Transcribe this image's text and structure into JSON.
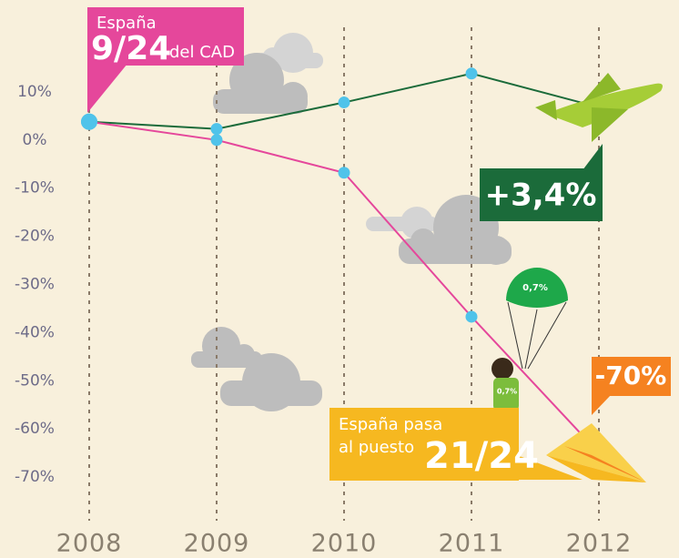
{
  "chart_data": {
    "type": "line",
    "x": [
      "2008",
      "2009",
      "2010",
      "2011",
      "2012"
    ],
    "series": [
      {
        "color": "#1b6b3a",
        "values": [
          3.8,
          2.3,
          7.8,
          13.8,
          6.8
        ]
      },
      {
        "color": "#e5479b",
        "values": [
          3.8,
          0,
          -6.8,
          -36.7,
          -65
        ]
      }
    ],
    "marker_color": "#4fc3ea",
    "ylim": [
      -80,
      20
    ],
    "yticks": [
      {
        "value": 10,
        "label": "10%"
      },
      {
        "value": 0,
        "label": "0%"
      },
      {
        "value": -10,
        "label": "-10%"
      },
      {
        "value": -20,
        "label": "-20%"
      },
      {
        "value": -30,
        "label": "-30%"
      },
      {
        "value": -40,
        "label": "-40%"
      },
      {
        "value": -50,
        "label": "-50%"
      },
      {
        "value": -60,
        "label": "-60%"
      },
      {
        "value": -70,
        "label": "-70%"
      }
    ],
    "annotations": {
      "spain_title": "España",
      "spain_rank": "9/24",
      "spain_rank_suffix": "del CAD",
      "green_change": "+3,4%",
      "pink_change": "-70%",
      "rank_line1": "España pasa",
      "rank_line2": "al puesto",
      "rank_value": "21/24",
      "parachute_label": "0,7%",
      "shirt_label": "0,7%"
    }
  }
}
